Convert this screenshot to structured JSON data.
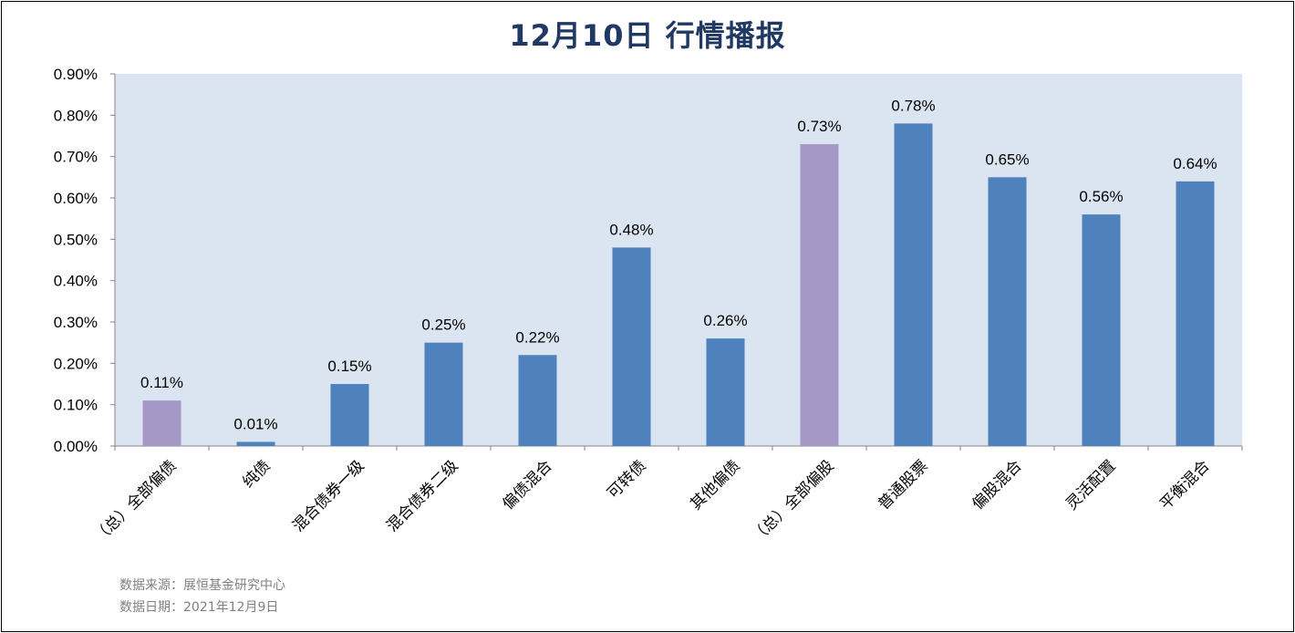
{
  "title": "12月10日  行情播报",
  "notes": {
    "source": "数据来源：展恒基金研究中心",
    "date": "数据日期：2021年12月9日"
  },
  "colors": {
    "plot_bg": "#dbe5f1",
    "bar_blue": "#4f81bd",
    "bar_purple": "#a597c6",
    "title": "#1f3864"
  },
  "chart_data": {
    "type": "bar",
    "title": "12月10日  行情播报",
    "xlabel": "",
    "ylabel": "",
    "ylim": [
      0,
      0.9
    ],
    "y_ticks": [
      "0.00%",
      "0.10%",
      "0.20%",
      "0.30%",
      "0.40%",
      "0.50%",
      "0.60%",
      "0.70%",
      "0.80%",
      "0.90%"
    ],
    "grid": false,
    "categories": [
      "（总）全部偏债",
      "纯债",
      "混合债券一级",
      "混合债券二级",
      "偏债混合",
      "可转债",
      "其他偏债",
      "（总）全部偏股",
      "普通股票",
      "偏股混合",
      "灵活配置",
      "平衡混合"
    ],
    "values": [
      0.11,
      0.01,
      0.15,
      0.25,
      0.22,
      0.48,
      0.26,
      0.73,
      0.78,
      0.65,
      0.56,
      0.64
    ],
    "labels": [
      "0.11%",
      "0.01%",
      "0.15%",
      "0.25%",
      "0.22%",
      "0.48%",
      "0.26%",
      "0.73%",
      "0.78%",
      "0.65%",
      "0.56%",
      "0.64%"
    ],
    "highlight": [
      "purple",
      "blue",
      "blue",
      "blue",
      "blue",
      "blue",
      "blue",
      "purple",
      "blue",
      "blue",
      "blue",
      "blue"
    ]
  }
}
